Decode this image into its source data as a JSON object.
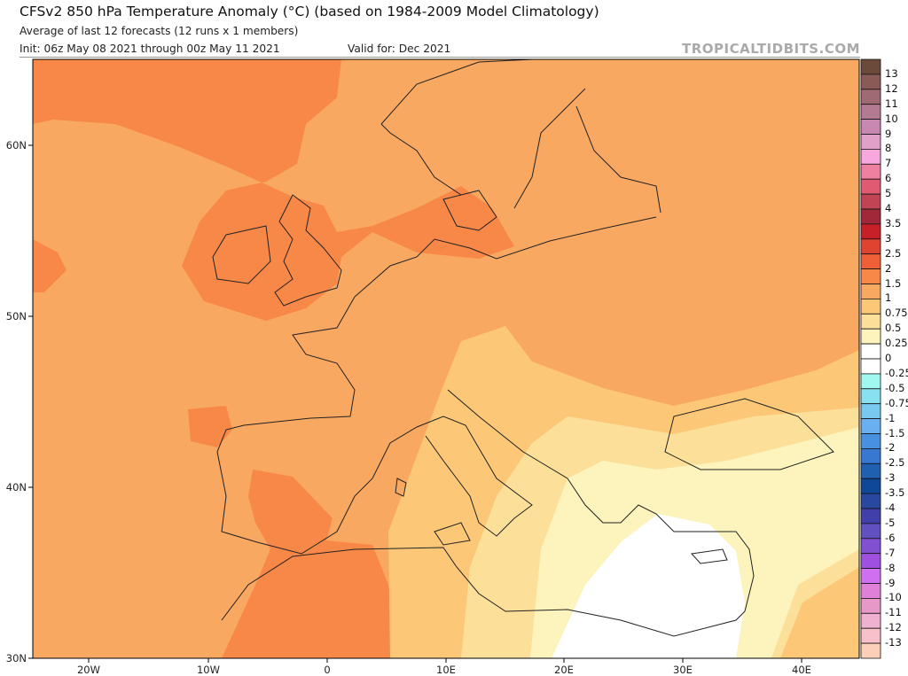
{
  "header": {
    "title": "CFSv2 850 hPa Temperature Anomaly (°C) (based on 1984-2009 Model Climatology)",
    "subtitle": "Average of last 12 forecasts (12 runs x 1 members)",
    "init": "Init: 06z May 08 2021 through 00z May 11 2021",
    "valid": "Valid for: Dec 2021",
    "brand": "TROPICALTIDBITS.COM"
  },
  "map": {
    "lat_ticks": [
      "60N",
      "50N",
      "40N",
      "30N"
    ],
    "lon_ticks": [
      "20W",
      "10W",
      "0",
      "10E",
      "20E",
      "30E",
      "40E"
    ]
  },
  "colorbar": {
    "labels": [
      "13",
      "12",
      "11",
      "10",
      "9",
      "8",
      "7",
      "6",
      "5",
      "4",
      "3.5",
      "3",
      "2.5",
      "2",
      "1.5",
      "1",
      "0.75",
      "0.5",
      "0.25",
      "0",
      "-0.25",
      "-0.5",
      "-0.75",
      "-1",
      "-1.5",
      "-2",
      "-2.5",
      "-3",
      "-3.5",
      "-4",
      "-5",
      "-6",
      "-7",
      "-8",
      "-9",
      "-10",
      "-11",
      "-12",
      "-13"
    ],
    "colors": [
      "#6b4a3a",
      "#8a5a58",
      "#a06a72",
      "#b47a92",
      "#c888b2",
      "#e0a0c8",
      "#f8a8dc",
      "#f080a0",
      "#e05a72",
      "#c04454",
      "#a02838",
      "#c82028",
      "#e04430",
      "#f06038",
      "#f88848",
      "#f8a860",
      "#fcc878",
      "#fce09a",
      "#fcf4bc",
      "#ffffff",
      "#ffffff",
      "#a0f8f0",
      "#88e0f0",
      "#78c8f0",
      "#68b0f0",
      "#4890e0",
      "#3878d0",
      "#2060b0",
      "#104898",
      "#2848a0",
      "#4040a8",
      "#6050c0",
      "#8050d0",
      "#a050e0",
      "#d070f0",
      "#e080d8",
      "#e898c8",
      "#f0b0d0",
      "#f8c0c8",
      "#fcd0b8"
    ]
  }
}
